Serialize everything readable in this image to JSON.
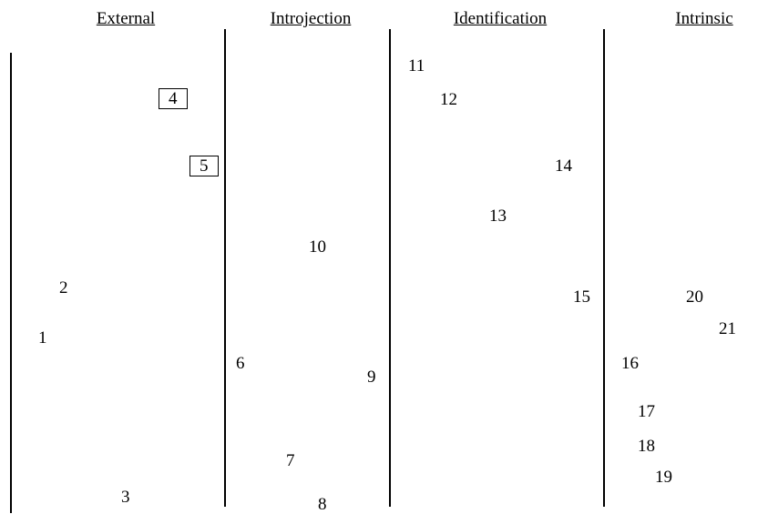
{
  "headings": {
    "external": "External",
    "introjection": "Introjection",
    "identification": "Identification",
    "intrinsic": "Intrinsic"
  },
  "items": [
    {
      "label": "1",
      "boxed": false
    },
    {
      "label": "2",
      "boxed": false
    },
    {
      "label": "3",
      "boxed": false
    },
    {
      "label": "4",
      "boxed": true
    },
    {
      "label": "5",
      "boxed": true
    },
    {
      "label": "6",
      "boxed": false
    },
    {
      "label": "7",
      "boxed": false
    },
    {
      "label": "8",
      "boxed": false
    },
    {
      "label": "9",
      "boxed": false
    },
    {
      "label": "10",
      "boxed": false
    },
    {
      "label": "11",
      "boxed": false
    },
    {
      "label": "12",
      "boxed": false
    },
    {
      "label": "13",
      "boxed": false
    },
    {
      "label": "14",
      "boxed": false
    },
    {
      "label": "15",
      "boxed": false
    },
    {
      "label": "16",
      "boxed": false
    },
    {
      "label": "17",
      "boxed": false
    },
    {
      "label": "18",
      "boxed": false
    },
    {
      "label": "19",
      "boxed": false
    },
    {
      "label": "20",
      "boxed": false
    },
    {
      "label": "21",
      "boxed": false
    }
  ]
}
